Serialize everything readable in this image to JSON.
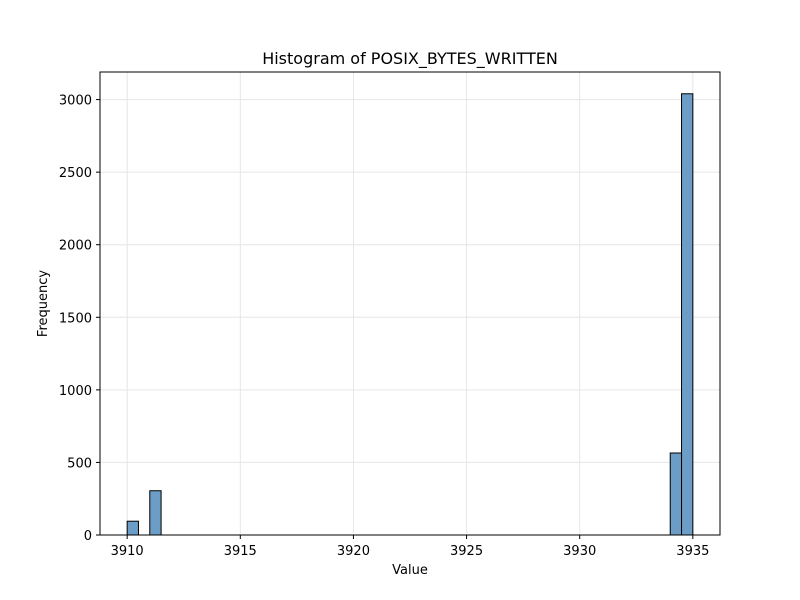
{
  "chart_data": {
    "type": "bar",
    "title": "Histogram of POSIX_BYTES_WRITTEN",
    "xlabel": "Value",
    "ylabel": "Frequency",
    "xlim": [
      3908.8,
      3936.2
    ],
    "ylim": [
      0,
      3190
    ],
    "xticks": [
      3910,
      3915,
      3920,
      3925,
      3930,
      3935
    ],
    "yticks": [
      0,
      500,
      1000,
      1500,
      2000,
      2500,
      3000
    ],
    "bin_width": 0.5,
    "bins": [
      {
        "x0": 3910.0,
        "x1": 3910.5,
        "count": 95
      },
      {
        "x0": 3911.0,
        "x1": 3911.5,
        "count": 305
      },
      {
        "x0": 3934.0,
        "x1": 3934.5,
        "count": 565
      },
      {
        "x0": 3934.5,
        "x1": 3935.0,
        "count": 3040
      }
    ],
    "bar_color": "#6b9dc6",
    "edge_color": "#000000",
    "grid": true,
    "legend": "none"
  }
}
